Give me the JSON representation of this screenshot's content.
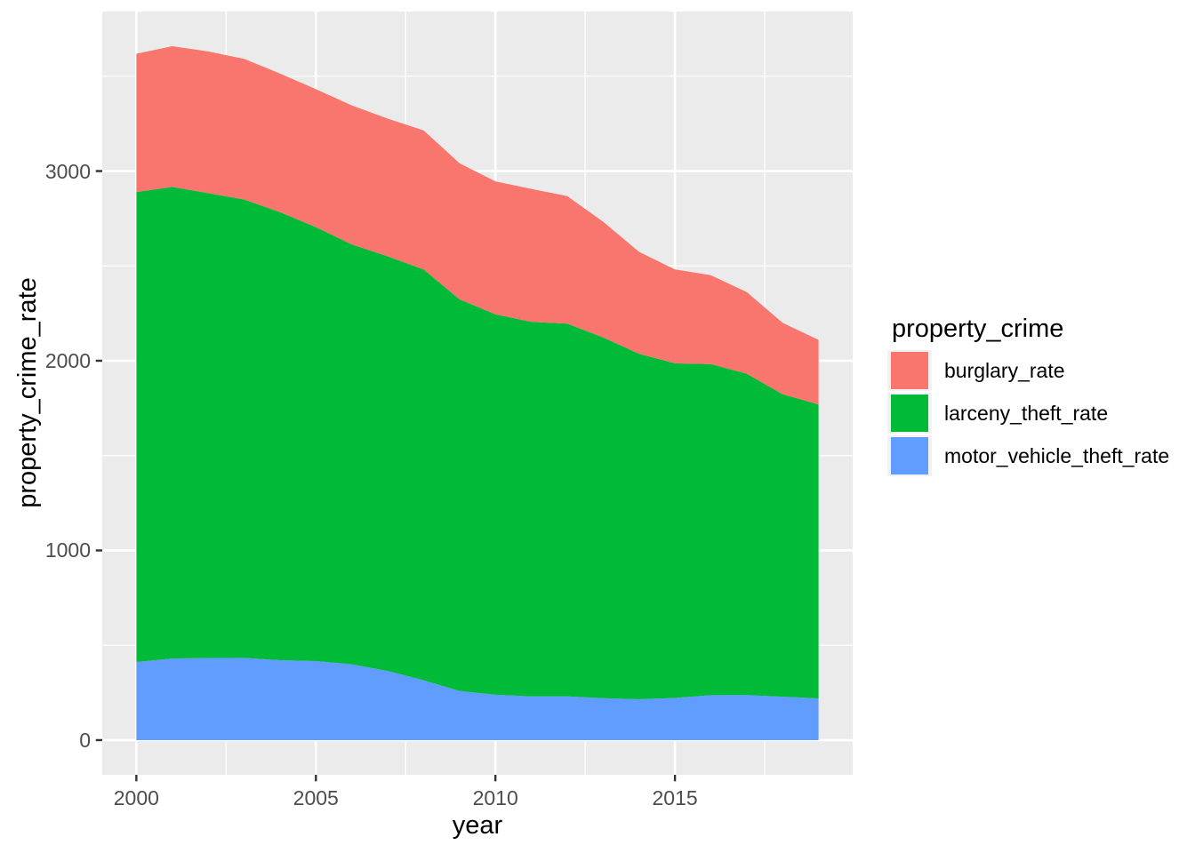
{
  "chart_data": {
    "type": "area",
    "stacked": true,
    "title": "",
    "xlabel": "year",
    "ylabel": "property_crime_rate",
    "legend_title": "property_crime",
    "legend_position": "right",
    "grid": true,
    "x": [
      2000,
      2001,
      2002,
      2003,
      2004,
      2005,
      2006,
      2007,
      2008,
      2009,
      2010,
      2011,
      2012,
      2013,
      2014,
      2015,
      2016,
      2017,
      2018,
      2019
    ],
    "series": [
      {
        "name": "burglary_rate",
        "color": "#F8766D",
        "values": [
          728.8,
          741.8,
          747.0,
          741.0,
          730.3,
          726.9,
          733.1,
          726.1,
          733.0,
          717.7,
          701.0,
          701.3,
          672.2,
          610.0,
          537.2,
          494.7,
          468.9,
          429.7,
          376.0,
          340.5
        ]
      },
      {
        "name": "larceny_theft_rate",
        "color": "#00BA38",
        "values": [
          2477.3,
          2485.7,
          2450.7,
          2416.5,
          2362.3,
          2287.8,
          2213.2,
          2185.4,
          2166.1,
          2064.5,
          2005.8,
          1974.1,
          1965.4,
          1901.9,
          1821.5,
          1764.4,
          1745.4,
          1694.4,
          1594.6,
          1549.5
        ]
      },
      {
        "name": "motor_vehicle_theft_rate",
        "color": "#619CFF",
        "values": [
          412.2,
          430.5,
          432.9,
          433.7,
          421.5,
          416.8,
          400.0,
          364.9,
          315.4,
          259.2,
          239.1,
          230.4,
          230.3,
          221.3,
          215.4,
          222.2,
          236.9,
          237.4,
          228.9,
          219.9
        ]
      }
    ],
    "stack_order_bottom_to_top": [
      "motor_vehicle_theft_rate",
      "larceny_theft_rate",
      "burglary_rate"
    ],
    "x_ticks": [
      2000,
      2005,
      2010,
      2015
    ],
    "x_minor_ticks": [
      2002.5,
      2007.5,
      2012.5,
      2017.5
    ],
    "y_ticks": [
      0,
      1000,
      2000,
      3000
    ],
    "y_minor_ticks": [
      500,
      1500,
      2500,
      3500
    ],
    "xlim": [
      1999.05,
      2019.95
    ],
    "ylim": [
      -182.9,
      3840.9
    ],
    "colors": {
      "panel_background": "#EBEBEB",
      "grid": "#FFFFFF",
      "tick_text": "#4D4D4D",
      "axis_title": "#000000",
      "tick_marks": "#333333",
      "legend_key_background": "#F2F2F2"
    }
  }
}
